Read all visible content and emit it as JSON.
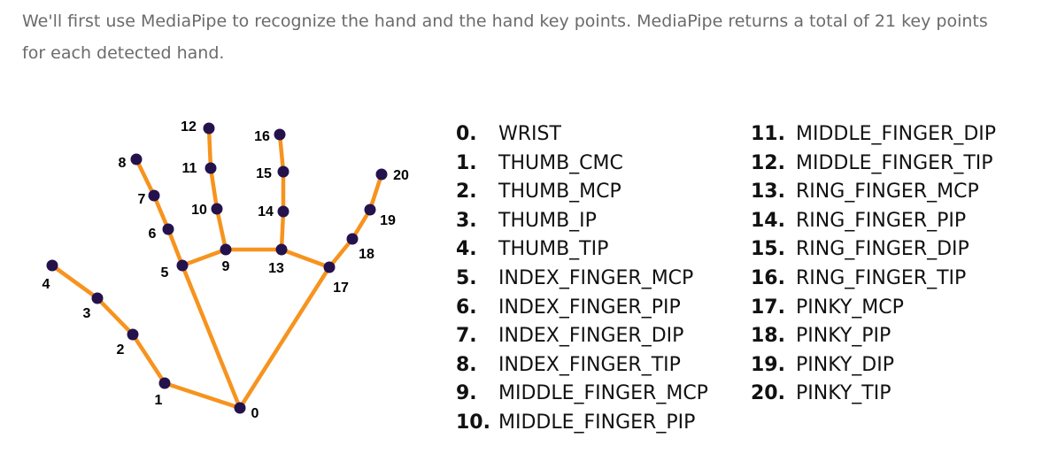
{
  "intro_text": "We'll first use MediaPipe to recognize the hand and the hand key points. MediaPipe returns a total of 21 key points for each detected hand.",
  "colors": {
    "bone": "#f7931e",
    "joint": "#24124d",
    "text": "#111111",
    "intro": "#6b6b6b"
  },
  "keypoints": [
    {
      "id": "0",
      "name": "WRIST"
    },
    {
      "id": "1",
      "name": "THUMB_CMC"
    },
    {
      "id": "2",
      "name": "THUMB_MCP"
    },
    {
      "id": "3",
      "name": "THUMB_IP"
    },
    {
      "id": "4",
      "name": "THUMB_TIP"
    },
    {
      "id": "5",
      "name": "INDEX_FINGER_MCP"
    },
    {
      "id": "6",
      "name": "INDEX_FINGER_PIP"
    },
    {
      "id": "7",
      "name": "INDEX_FINGER_DIP"
    },
    {
      "id": "8",
      "name": "INDEX_FINGER_TIP"
    },
    {
      "id": "9",
      "name": "MIDDLE_FINGER_MCP"
    },
    {
      "id": "10",
      "name": "MIDDLE_FINGER_PIP"
    },
    {
      "id": "11",
      "name": "MIDDLE_FINGER_DIP"
    },
    {
      "id": "12",
      "name": "MIDDLE_FINGER_TIP"
    },
    {
      "id": "13",
      "name": "RING_FINGER_MCP"
    },
    {
      "id": "14",
      "name": "RING_FINGER_PIP"
    },
    {
      "id": "15",
      "name": "RING_FINGER_DIP"
    },
    {
      "id": "16",
      "name": "RING_FINGER_TIP"
    },
    {
      "id": "17",
      "name": "PINKY_MCP"
    },
    {
      "id": "18",
      "name": "PINKY_PIP"
    },
    {
      "id": "19",
      "name": "PINKY_DIP"
    },
    {
      "id": "20",
      "name": "PINKY_TIP"
    }
  ],
  "connections": [
    [
      0,
      1
    ],
    [
      1,
      2
    ],
    [
      2,
      3
    ],
    [
      3,
      4
    ],
    [
      0,
      5
    ],
    [
      5,
      6
    ],
    [
      6,
      7
    ],
    [
      7,
      8
    ],
    [
      5,
      9
    ],
    [
      9,
      10
    ],
    [
      10,
      11
    ],
    [
      11,
      12
    ],
    [
      9,
      13
    ],
    [
      13,
      14
    ],
    [
      14,
      15
    ],
    [
      15,
      16
    ],
    [
      13,
      17
    ],
    [
      0,
      17
    ],
    [
      17,
      18
    ],
    [
      18,
      19
    ],
    [
      19,
      20
    ]
  ]
}
